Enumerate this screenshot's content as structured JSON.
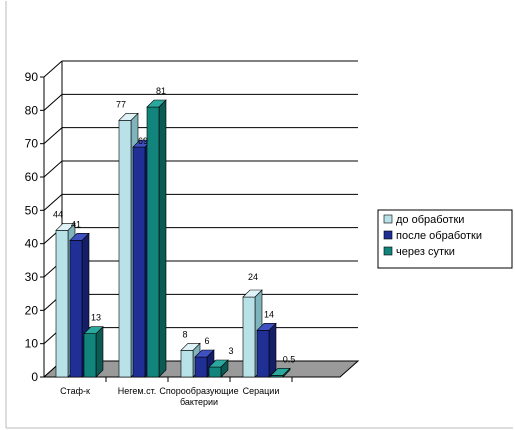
{
  "chart_data": {
    "type": "bar",
    "three_d": true,
    "categories": [
      "Стаф-к",
      "Негем.ст.",
      "Спорообразующие бактерии",
      "Серации"
    ],
    "category_lines": [
      [
        "Стаф-к"
      ],
      [
        "Негем.ст."
      ],
      [
        "Спорообразующие",
        "бактерии"
      ],
      [
        "Серации"
      ]
    ],
    "series": [
      {
        "name": "до обработки",
        "values": [
          44,
          77,
          8,
          24
        ],
        "labels": [
          "44",
          "77",
          "8",
          "24"
        ]
      },
      {
        "name": "после обработки",
        "values": [
          41,
          69,
          6,
          14
        ],
        "labels": [
          "41",
          "69",
          "6",
          "14"
        ]
      },
      {
        "name": "через сутки",
        "values": [
          13,
          81,
          3,
          0.5
        ],
        "labels": [
          "13",
          "81",
          "3",
          "0.5"
        ]
      }
    ],
    "ylim": [
      0,
      90
    ],
    "yticks": [
      "0",
      "10",
      "20",
      "30",
      "40",
      "50",
      "60",
      "70",
      "80",
      "90"
    ],
    "grid": true,
    "legend_position": "right",
    "colors": {
      "series": [
        "#b8e1e8",
        "#1f2f96",
        "#11857c"
      ],
      "series_top": [
        "#dff3f6",
        "#3f51c0",
        "#2ba89d"
      ],
      "series_side": [
        "#7fb4bd",
        "#141f68",
        "#0b5a54"
      ],
      "floor": "#9a9a9a",
      "grid": "#000000"
    }
  }
}
